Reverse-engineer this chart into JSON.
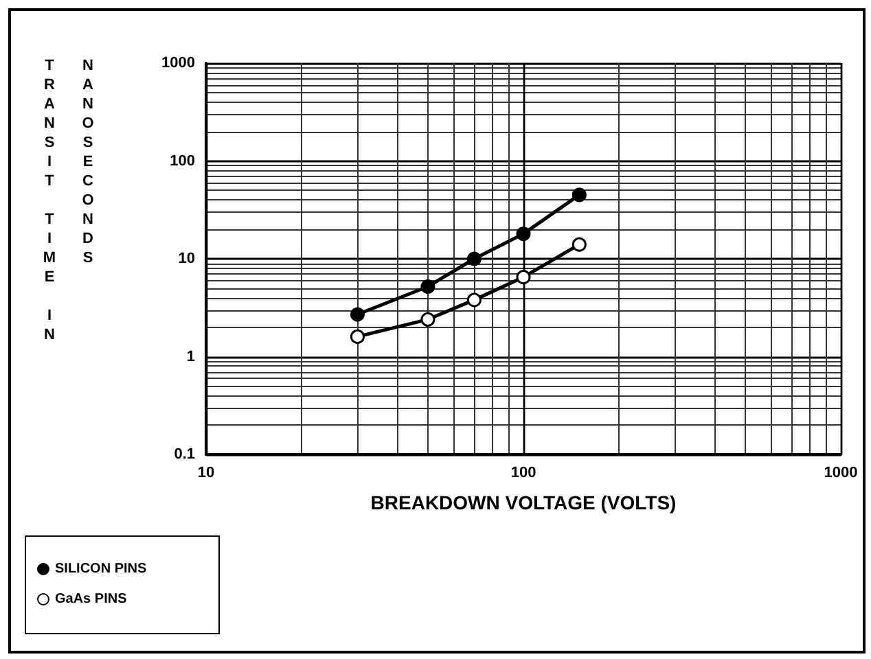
{
  "chart_data": {
    "type": "line",
    "xlabel": "BREAKDOWN VOLTAGE (VOLTS)",
    "ylabel": "TRANSIT TIME IN NANOSECONDS",
    "log": "xy",
    "xlim": [
      10,
      1000
    ],
    "xticks": [
      10,
      100,
      1000
    ],
    "ylim": [
      0.1,
      1000
    ],
    "yticks": [
      0.1,
      1,
      10,
      100,
      1000
    ],
    "grid": true,
    "legend": "bottom left",
    "line_style": "solid",
    "series": [
      {
        "name": "SILICON PINS",
        "color": "#000000",
        "marker": "circle",
        "x": [
          30,
          50,
          70,
          100,
          150
        ],
        "values": [
          2.7,
          5.2,
          10,
          18,
          45
        ]
      },
      {
        "name": "GaAs PINS",
        "color": "#000000",
        "marker": "circle",
        "x": [
          30,
          50,
          70,
          100,
          150
        ],
        "values": [
          1.6,
          2.4,
          3.8,
          6.5,
          14
        ]
      }
    ]
  }
}
